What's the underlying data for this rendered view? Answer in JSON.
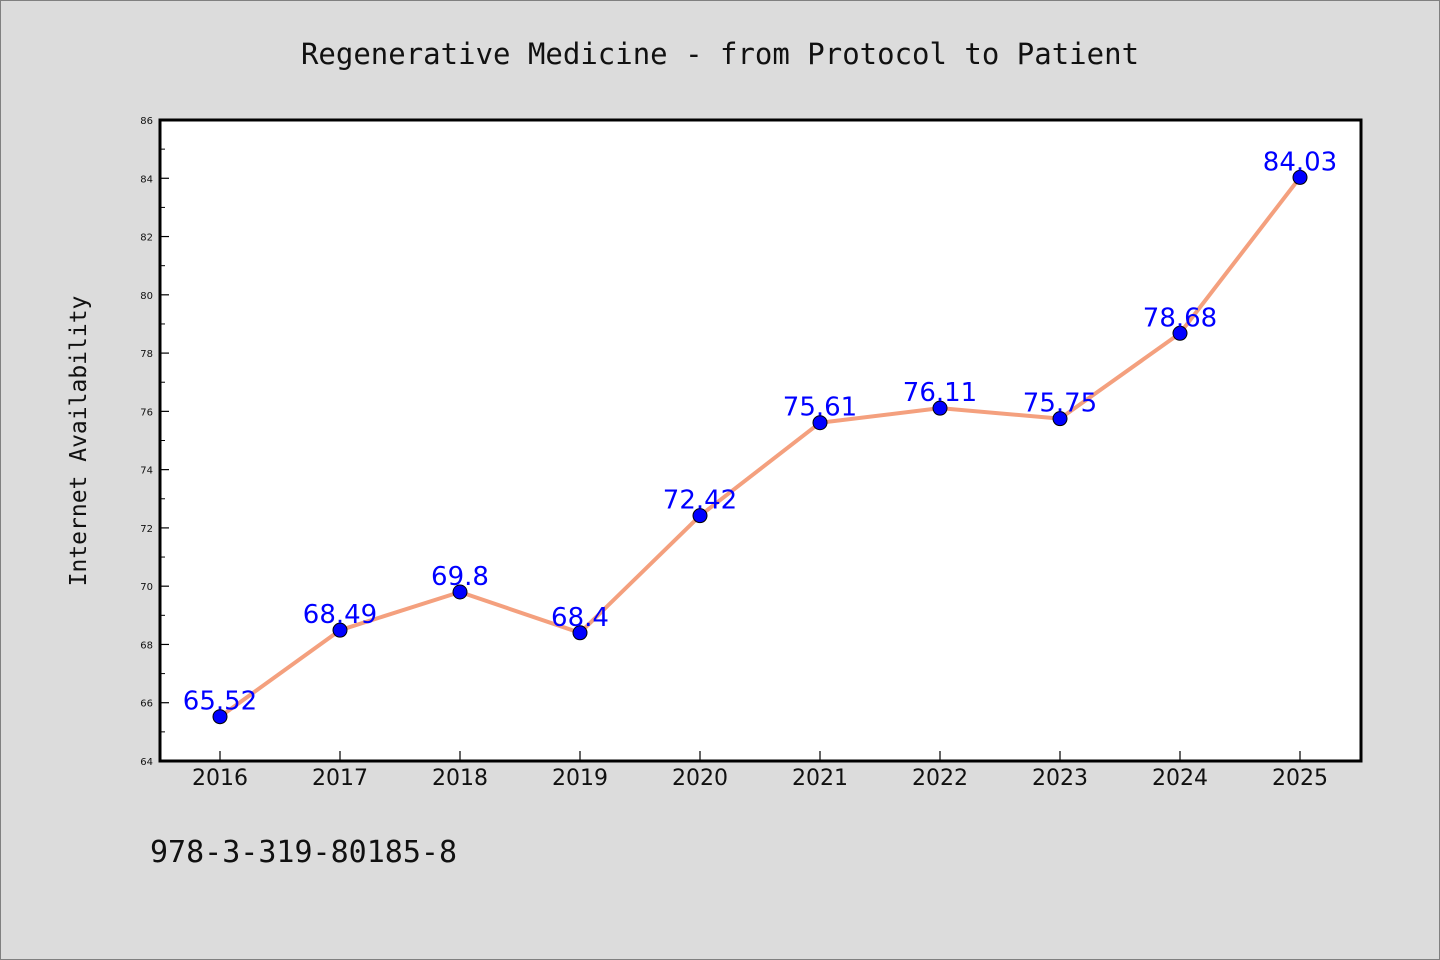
{
  "chart_data": {
    "type": "line",
    "title": "Regenerative Medicine - from Protocol to Patient",
    "xlabel": "",
    "ylabel": "Internet Availability",
    "categories": [
      "2016",
      "2017",
      "2018",
      "2019",
      "2020",
      "2021",
      "2022",
      "2023",
      "2024",
      "2025"
    ],
    "series": [
      {
        "values": [
          65.52,
          68.49,
          69.8,
          68.4,
          72.42,
          75.61,
          76.11,
          75.75,
          78.68,
          84.03
        ],
        "data_labels": [
          "65.52",
          "68.49",
          "69.8",
          "68.4",
          "72.42",
          "75.61",
          "76.11",
          "75.75",
          "78.68",
          "84.03"
        ],
        "line_color": "#f4a07e",
        "marker_color": "#0000ff"
      }
    ],
    "ylim": [
      64,
      86
    ],
    "yticks": [
      "64",
      "66",
      "68",
      "70",
      "72",
      "74",
      "76",
      "78",
      "80",
      "82",
      "84",
      "86"
    ],
    "grid": false,
    "legend": "none",
    "colors": {
      "background": "#dcdcdc",
      "plot_background": "#ffffff",
      "data_label": "#0000ff"
    }
  },
  "footer": {
    "isbn": "978-3-319-80185-8"
  }
}
